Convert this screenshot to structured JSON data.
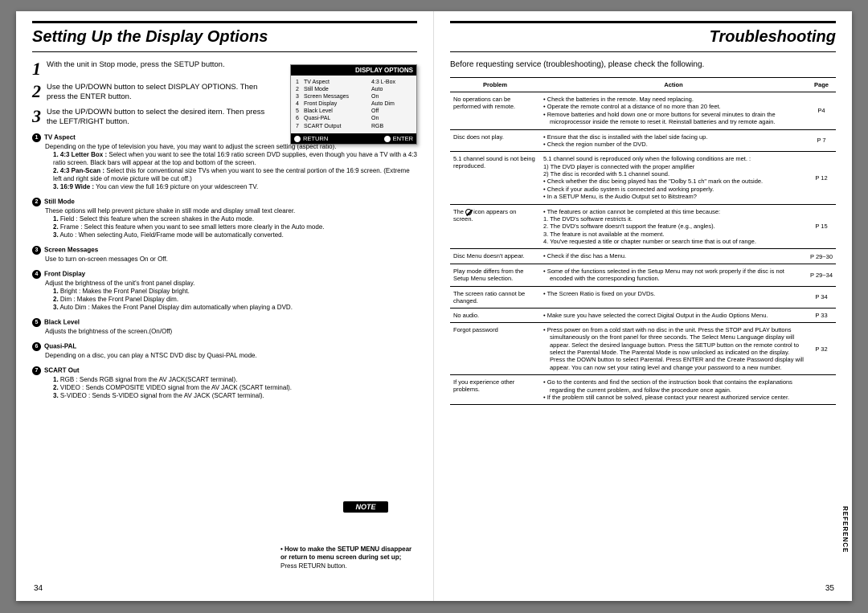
{
  "left": {
    "title": "Setting Up the Display Options",
    "steps": [
      "With the unit in Stop mode, press the SETUP button.",
      "Use the UP/DOWN button to select DISPLAY OPTIONS. Then press the ENTER button.",
      "Use the UP/DOWN button to select the desired item. Then press the LEFT/RIGHT button."
    ],
    "osd": {
      "title": "DISPLAY OPTIONS",
      "rows": [
        {
          "n": "1",
          "l": "TV Aspect",
          "v": "4:3 L-Box"
        },
        {
          "n": "2",
          "l": "Still Mode",
          "v": "Auto"
        },
        {
          "n": "3",
          "l": "Screen Messages",
          "v": "On"
        },
        {
          "n": "4",
          "l": "Front Display",
          "v": "Auto Dim"
        },
        {
          "n": "5",
          "l": "Black Level",
          "v": "Off"
        },
        {
          "n": "6",
          "l": "Quasi-PAL",
          "v": "On"
        },
        {
          "n": "7",
          "l": "SCART Output",
          "v": "RGB"
        }
      ],
      "footer_left": "RETURN",
      "footer_right": "ENTER"
    },
    "sections": [
      {
        "num": "1",
        "heading": "TV Aspect",
        "body": "Depending on the type of television you have, you may want to adjust the screen setting (aspect ratio).",
        "subs": [
          {
            "b": "1. 4:3 Letter Box :",
            "t": "Select when you want to see the total 16:9 ratio screen DVD supplies, even though you have a TV with a 4:3 ratio screen. Black bars will appear at the top and bottom of the screen."
          },
          {
            "b": "2. 4:3 Pan-Scan :",
            "t": "Select this for conventional size TVs when you want to see the central portion of the 16:9 screen. (Extreme left and right side of movie picture will be cut off.)"
          },
          {
            "b": "3. 16:9 Wide :",
            "t": "You can view the full 16:9 picture on your widescreen TV."
          }
        ]
      },
      {
        "num": "2",
        "heading": "Still Mode",
        "body": "These options will help prevent picture shake in still mode and display small text clearer.",
        "subs": [
          {
            "b": "1.",
            "t": "Field : Select this feature when the screen shakes in the Auto mode."
          },
          {
            "b": "2.",
            "t": "Frame : Select this feature when you want to see small letters more clearly in the Auto mode."
          },
          {
            "b": "3.",
            "t": "Auto : When selecting Auto, Field/Frame mode will be automatically converted."
          }
        ]
      },
      {
        "num": "3",
        "heading": "Screen Messages",
        "body": "Use to turn on-screen messages On or Off.",
        "subs": []
      },
      {
        "num": "4",
        "heading": "Front Display",
        "body": "Adjust the brightness of the unit's front panel display.",
        "subs": [
          {
            "b": "1.",
            "t": "Bright : Makes the Front Panel Display bright."
          },
          {
            "b": "2.",
            "t": "Dim : Makes the Front Panel Display dim."
          },
          {
            "b": "3.",
            "t": "Auto Dim : Makes the Front Panel Display dim automatically when playing a DVD."
          }
        ]
      },
      {
        "num": "5",
        "heading": "Black Level",
        "body": "Adjusts the brightness of the screen.(On/Off)",
        "subs": []
      },
      {
        "num": "6",
        "heading": "Quasi-PAL",
        "body": "Depending on a disc, you can play a NTSC DVD disc by Quasi-PAL mode.",
        "subs": []
      },
      {
        "num": "7",
        "heading": "SCART Out",
        "body": "",
        "subs": [
          {
            "b": "1.",
            "t": "RGB : Sends RGB signal from the AV JACK(SCART terminal)."
          },
          {
            "b": "2.",
            "t": "VIDEO : Sends COMPOSITE VIDEO signal from the AV JACK (SCART terminal)."
          },
          {
            "b": "3.",
            "t": "S-VIDEO : Sends S-VIDEO signal from the AV JACK (SCART terminal)."
          }
        ]
      }
    ],
    "note_label": "NOTE",
    "note_bold": "• How to make the SETUP MENU disappear or return to menu screen during set up;",
    "note_rest": "Press RETURN button.",
    "page_num": "34"
  },
  "right": {
    "title": "Troubleshooting",
    "intro": "Before requesting service (troubleshooting), please check the following.",
    "headers": {
      "problem": "Problem",
      "action": "Action",
      "page": "Page"
    },
    "rows": [
      {
        "problem": "No operations can be performed with remote.",
        "actions": [
          "Check the batteries in the remote. May need replacing.",
          "Operate the remote control at a distance of no more than 20 feet.",
          "Remove batteries and hold down one or more buttons for several minutes to drain the microprocessor inside the remote to reset it. Reinstall batteries and try remote again."
        ],
        "page": "P4"
      },
      {
        "problem": "Disc does not play.",
        "actions": [
          "Ensure that the disc is installed with the label side facing up.",
          "Check the region number of the DVD."
        ],
        "page": "P 7"
      },
      {
        "problem": "5.1 channel sound is not being reproduced.",
        "actions": [
          "5.1 channel sound is reproduced only when the following conditions are met. :",
          "1) The DVD player is connected with the proper amplifier",
          "2) The disc is recorded with 5.1 channel sound.",
          "Check whether the disc being played has the \"Dolby 5.1 ch\" mark on the outside.",
          "Check if your audio system is connected and working properly.",
          "In a SETUP Menu, is the Audio Output set to Bitstream?"
        ],
        "page": "P 12"
      },
      {
        "problem": "__ICON__",
        "actions": [
          "The features or action cannot be completed at this time because:",
          "1. The DVD's software restricts it.",
          "2. The DVD's software doesn't support the feature (e.g., angles).",
          "3. The feature is not available at the moment.",
          "4. You've requested a title or chapter number or search time that is out of range."
        ],
        "page": "P 15"
      },
      {
        "problem": "Disc Menu doesn't appear.",
        "actions": [
          "Check if the disc has a Menu."
        ],
        "page": "P 29~30"
      },
      {
        "problem": "Play mode differs from the Setup Menu selection.",
        "actions": [
          "Some of the functions selected in the Setup Menu may not work properly if the disc is not encoded with the corresponding function."
        ],
        "page": "P 29~34"
      },
      {
        "problem": "The screen ratio cannot be changed.",
        "actions": [
          "The Screen Ratio is fixed on your DVDs."
        ],
        "page": "P 34"
      },
      {
        "problem": "No audio.",
        "actions": [
          "Make sure you have selected the correct Digital Output in the Audio Options Menu."
        ],
        "page": "P 33"
      },
      {
        "problem": "Forgot password",
        "actions": [
          "Press power on from a cold start with no disc in the unit. Press the STOP and PLAY buttons simultaneously on the front panel for three seconds. The Select Menu Language display will appear. Select the desired language button. Press the SETUP button on the remote control to select the Parental Mode. The Parental Mode is now unlocked as indicated on the display. Press the DOWN button to select Parental. Press ENTER and the Create Password display will appear. You can now set your rating level and change your password to a new number."
        ],
        "page": "P 32"
      },
      {
        "problem": "If you experience other problems.",
        "actions": [
          "Go to the contents and find the section of the instruction book that contains the explanations regarding the current problem, and follow the procedure once again.",
          "If the problem still cannot be solved, please contact your nearest authorized service center."
        ],
        "page": ""
      }
    ],
    "ref_tab": "REFERENCE",
    "page_num": "35"
  }
}
